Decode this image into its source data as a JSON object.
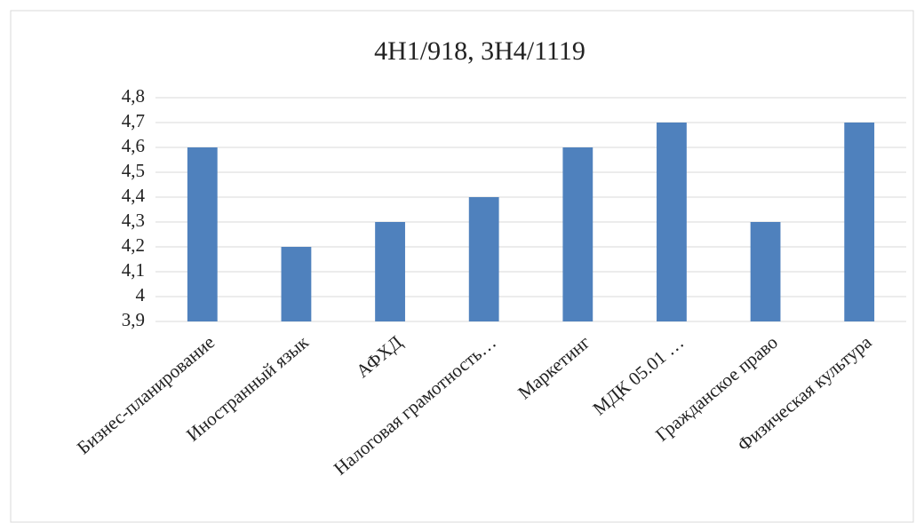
{
  "chart_data": {
    "type": "bar",
    "title": "4Н1/918,  3Н4/1119",
    "categories": [
      "Бизнес-планирование",
      "Иностранный язык",
      "АФХД",
      "Налоговая грамотность…",
      "Маркетинг",
      "МДК 05.01 …",
      "Гражданское право",
      "Физическая культура"
    ],
    "values": [
      4.6,
      4.2,
      4.3,
      4.4,
      4.6,
      4.7,
      4.3,
      4.7
    ],
    "color": "#4f81bd",
    "ylim": [
      3.9,
      4.8
    ],
    "yticks": [
      {
        "value": 3.9,
        "label": "3,9"
      },
      4,
      {
        "value": 4.1,
        "label": "4,1"
      },
      {
        "value": 4.2,
        "label": "4,2"
      },
      {
        "value": 4.3,
        "label": "4,3"
      },
      {
        "value": 4.4,
        "label": "4,4"
      },
      {
        "value": 4.5,
        "label": "4,5"
      },
      {
        "value": 4.6,
        "label": "4,6"
      },
      {
        "value": 4.7,
        "label": "4,7"
      },
      {
        "value": 4.8,
        "label": "4,8"
      }
    ],
    "grid": true
  }
}
